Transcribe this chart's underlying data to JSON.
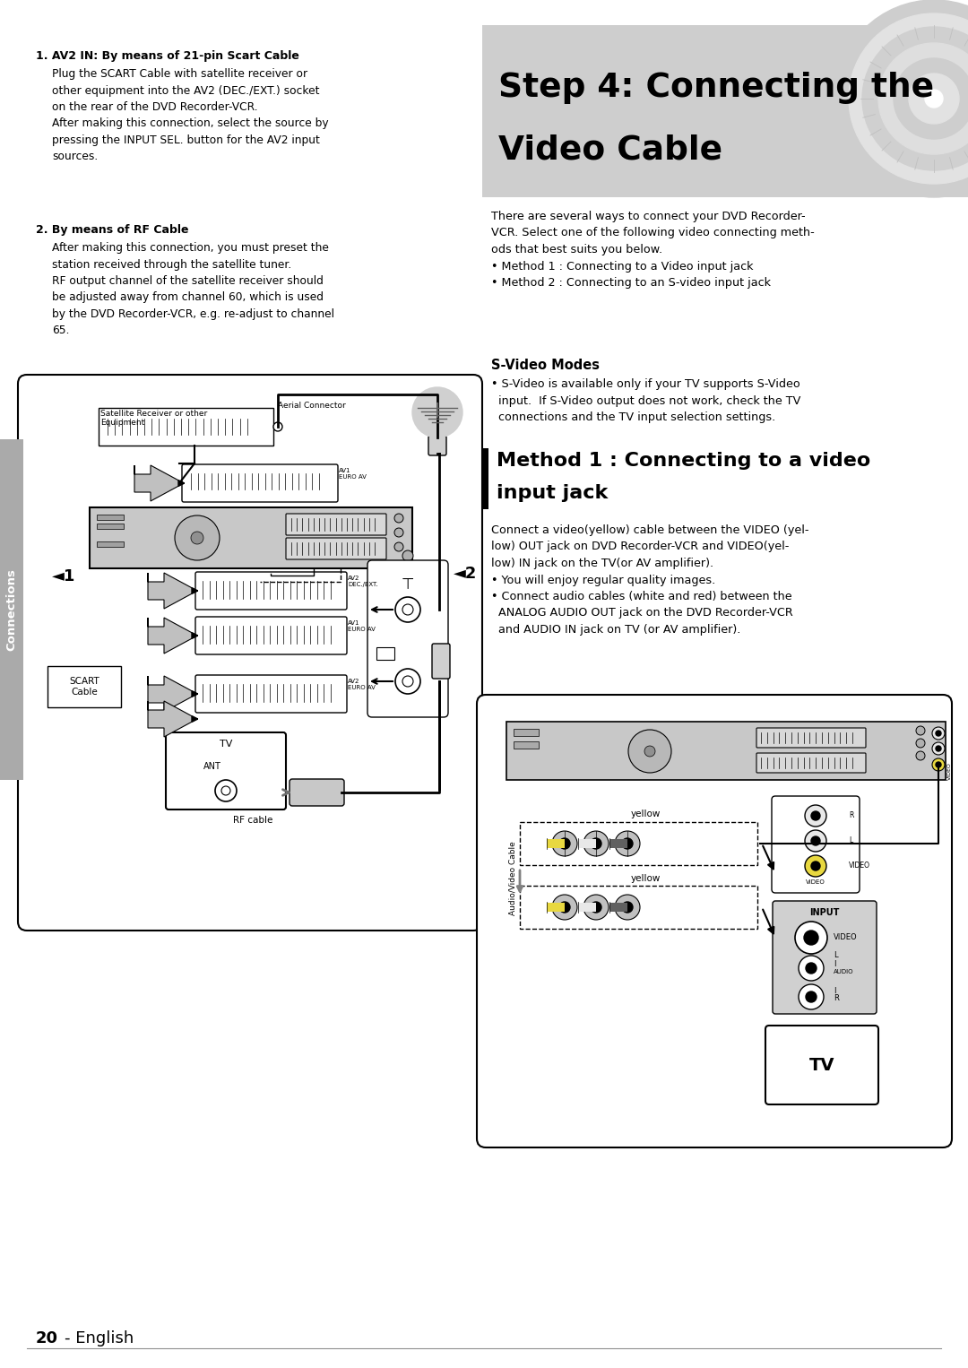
{
  "bg_color": "#ffffff",
  "header_bg": "#d0d0d0",
  "header_title_line1": "Step 4: Connecting the",
  "header_title_line2": "Video Cable",
  "left_bold_1": "1. AV2 IN: By means of 21-pin Scart Cable",
  "left_text_1": "Plug the SCART Cable with satellite receiver or\nother equipment into the AV2 (DEC./EXT.) socket\non the rear of the DVD Recorder-VCR.\nAfter making this connection, select the source by\npressing the INPUT SEL. button for the AV2 input\nsources.",
  "left_bold_2": "2. By means of RF Cable",
  "left_text_2": "After making this connection, you must preset the\nstation received through the satellite tuner.\nRF output channel of the satellite receiver should\nbe adjusted away from channel 60, which is used\nby the DVD Recorder-VCR, e.g. re-adjust to channel\n65.",
  "right_intro": "There are several ways to connect your DVD Recorder-\nVCR. Select one of the following video connecting meth-\nods that best suits you below.\n• Method 1 : Connecting to a Video input jack\n• Method 2 : Connecting to an S-video input jack",
  "svideo_title": "S-Video Modes",
  "svideo_text": "• S-Video is available only if your TV supports S-Video\n  input.  If S-Video output does not work, check the TV\n  connections and the TV input selection settings.",
  "method1_title_line1": "Method 1 : Connecting to a video",
  "method1_title_line2": "input jack",
  "method1_text": "Connect a video(yellow) cable between the VIDEO (yel-\nlow) OUT jack on DVD Recorder-VCR and VIDEO(yel-\nlow) IN jack on the TV(or AV amplifier).\n• You will enjoy regular quality images.\n• Connect audio cables (white and red) between the\n  ANALOG AUDIO OUT jack on the DVD Recorder-VCR\n  and AUDIO IN jack on TV (or AV amplifier).",
  "connections_label": "Connections",
  "page_number": "20",
  "english_label": "English"
}
